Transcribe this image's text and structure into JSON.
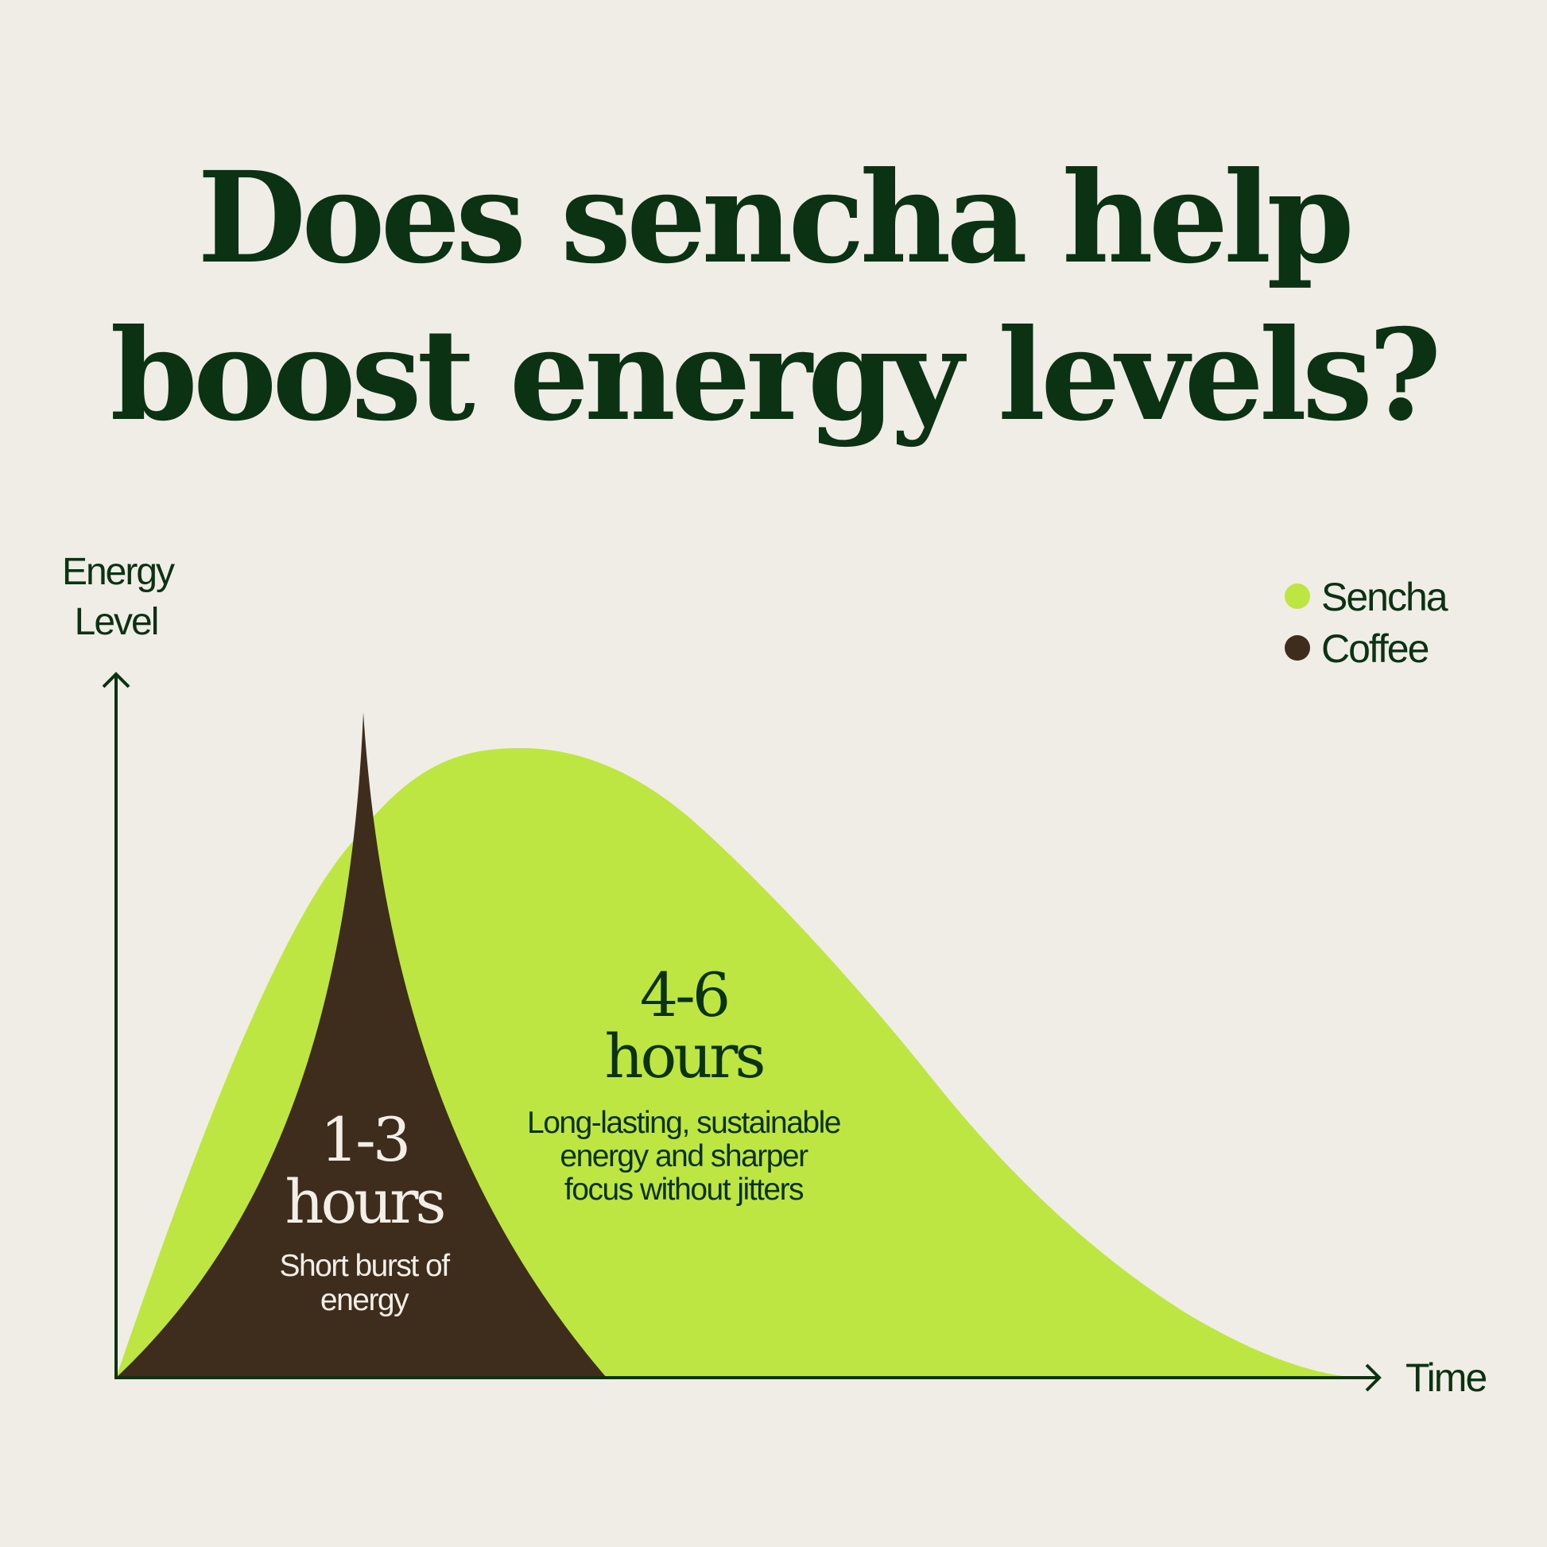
{
  "colors": {
    "background": "#efede6",
    "text": "#0c3214",
    "sencha": "#bde642",
    "coffee": "#3e2c1d",
    "light_text": "#f3efe6"
  },
  "chart_data": {
    "type": "area",
    "title": [
      "Does sencha help",
      "boost energy levels?"
    ],
    "xlabel": "Time",
    "ylabel": [
      "Energy",
      "Level"
    ],
    "grid": false,
    "legend_placement": "top-right",
    "legend": [
      {
        "name": "Sencha",
        "color": "#bde642"
      },
      {
        "name": "Coffee",
        "color": "#3e2c1d"
      }
    ],
    "series": [
      {
        "name": "Sencha",
        "shape": "broad gradual hump, long tail",
        "annotation": {
          "duration": "4-6",
          "unit": "hours",
          "description": [
            "Long-lasting, sustainable",
            "energy and sharper",
            "focus without jitters"
          ]
        }
      },
      {
        "name": "Coffee",
        "shape": "sharp narrow spike",
        "annotation": {
          "duration": "1-3",
          "unit": "hours",
          "description": [
            "Short burst of",
            "energy"
          ]
        }
      }
    ]
  }
}
